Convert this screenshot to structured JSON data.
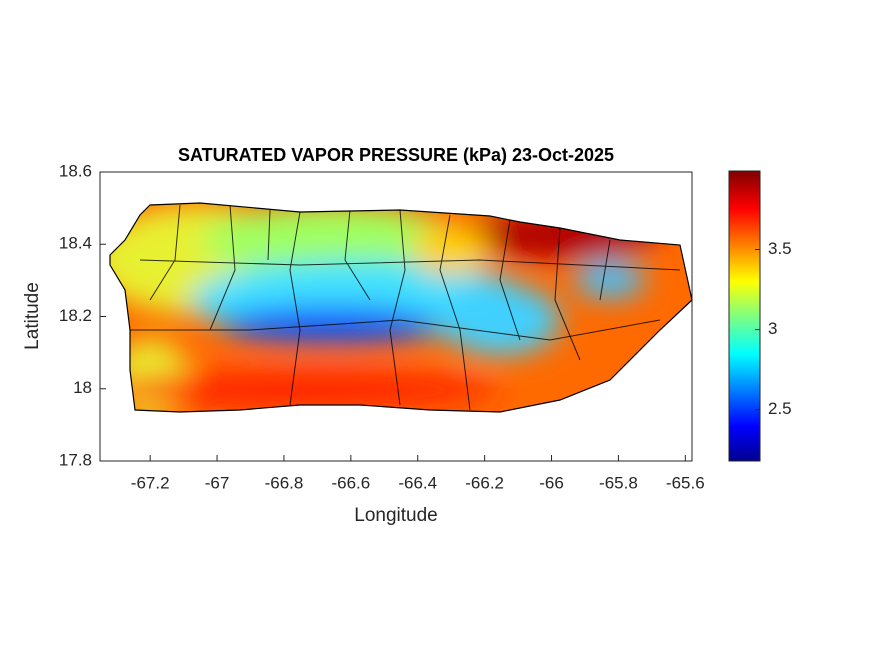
{
  "chart_data": {
    "type": "contour-map",
    "title": "SATURATED VAPOR PRESSURE (kPa) 23-Oct-2025",
    "xlabel": "Longitude",
    "ylabel": "Latitude",
    "xlim": [
      -67.35,
      -65.58
    ],
    "xticks": [
      -67.2,
      -67,
      -66.8,
      -66.6,
      -66.4,
      -66.2,
      -66,
      -65.8,
      -65.6
    ],
    "ylim": [
      17.8,
      18.6
    ],
    "yticks": [
      17.8,
      18,
      18.2,
      18.4,
      18.6
    ],
    "colorbar": {
      "clim": [
        2.18,
        3.99
      ],
      "ticks": [
        2.5,
        3,
        3.5
      ],
      "colormap": "jet"
    }
  }
}
